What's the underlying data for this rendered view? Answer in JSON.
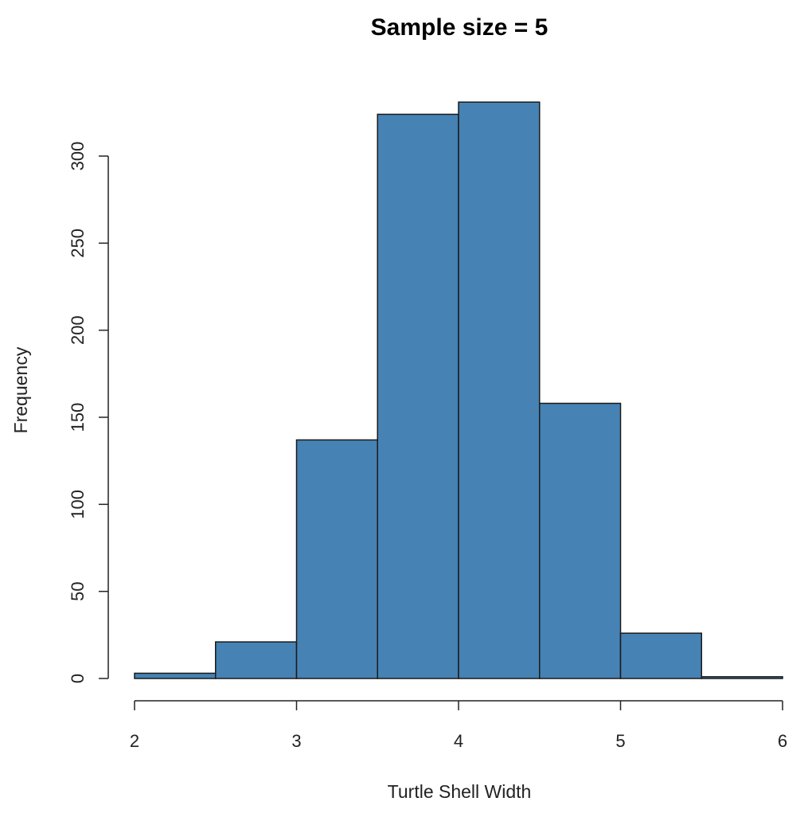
{
  "colors": {
    "bar_fill": "#4682B4",
    "bar_stroke": "#1a1a1a",
    "axis": "#222222"
  },
  "chart_data": {
    "type": "bar",
    "subtype": "histogram",
    "title": "Sample size = 5",
    "xlabel": "Turtle Shell Width",
    "ylabel": "Frequency",
    "bins": [
      {
        "start": 2.0,
        "end": 2.5,
        "count": 3
      },
      {
        "start": 2.5,
        "end": 3.0,
        "count": 21
      },
      {
        "start": 3.0,
        "end": 3.5,
        "count": 137
      },
      {
        "start": 3.5,
        "end": 4.0,
        "count": 324
      },
      {
        "start": 4.0,
        "end": 4.5,
        "count": 331
      },
      {
        "start": 4.5,
        "end": 5.0,
        "count": 158
      },
      {
        "start": 5.0,
        "end": 5.5,
        "count": 26
      },
      {
        "start": 5.5,
        "end": 6.0,
        "count": 1
      }
    ],
    "xlim": [
      2,
      6
    ],
    "ylim": [
      0,
      331
    ],
    "x_ticks": [
      "2",
      "3",
      "4",
      "5",
      "6"
    ],
    "y_ticks": [
      "0",
      "50",
      "100",
      "150",
      "200",
      "250",
      "300"
    ],
    "grid": false,
    "legend": "none"
  }
}
